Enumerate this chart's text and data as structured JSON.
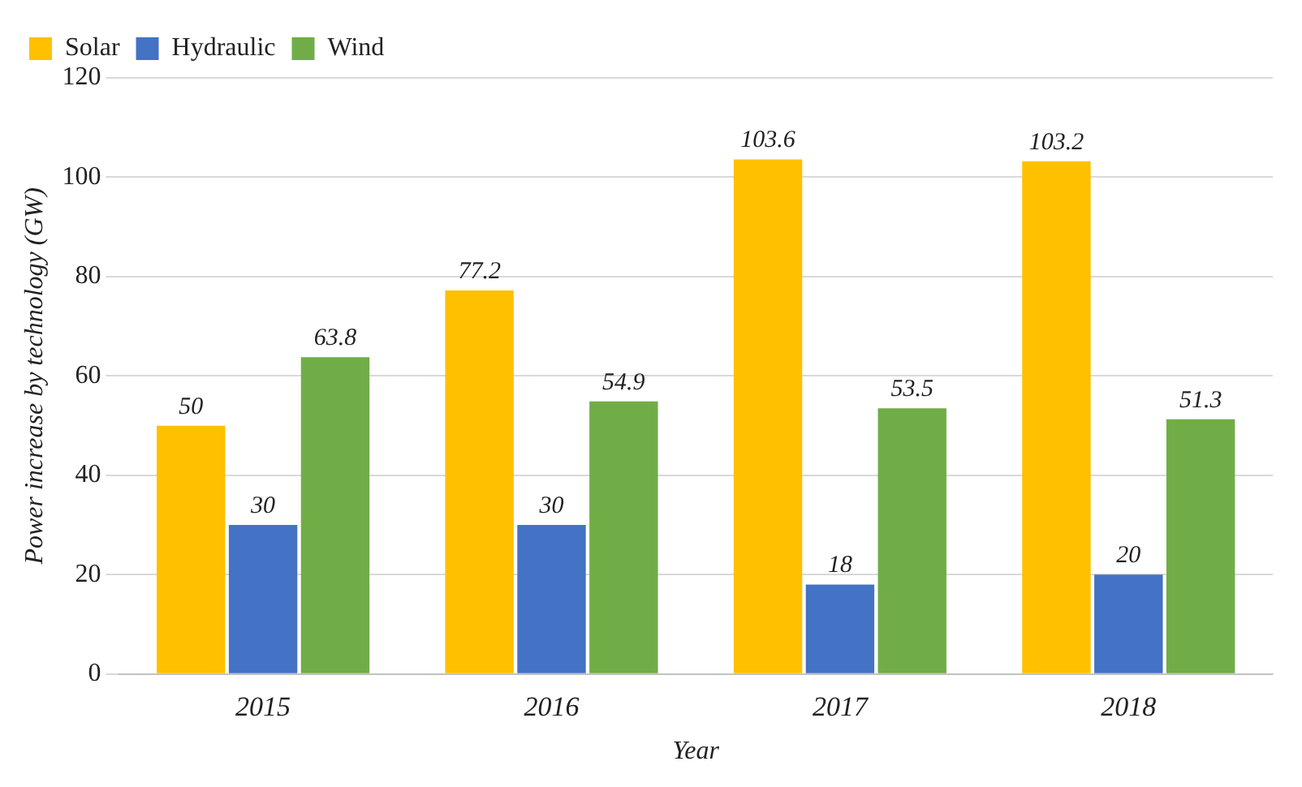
{
  "chart_data": {
    "type": "bar",
    "xlabel": "Year",
    "ylabel": "Power increase by technology (GW)",
    "categories": [
      "2015",
      "2016",
      "2017",
      "2018"
    ],
    "series": [
      {
        "name": "Solar",
        "color": "#ffc000",
        "values": [
          50,
          77.2,
          103.6,
          103.2
        ]
      },
      {
        "name": "Hydraulic",
        "color": "#4472c4",
        "values": [
          30,
          30,
          18,
          20
        ]
      },
      {
        "name": "Wind",
        "color": "#70ad47",
        "values": [
          63.8,
          54.9,
          53.5,
          51.3
        ]
      }
    ],
    "ylim": [
      0,
      120
    ],
    "yticks": [
      0,
      20,
      40,
      60,
      80,
      100,
      120
    ],
    "grid": "y",
    "legend": "top left",
    "data_labels": true
  }
}
